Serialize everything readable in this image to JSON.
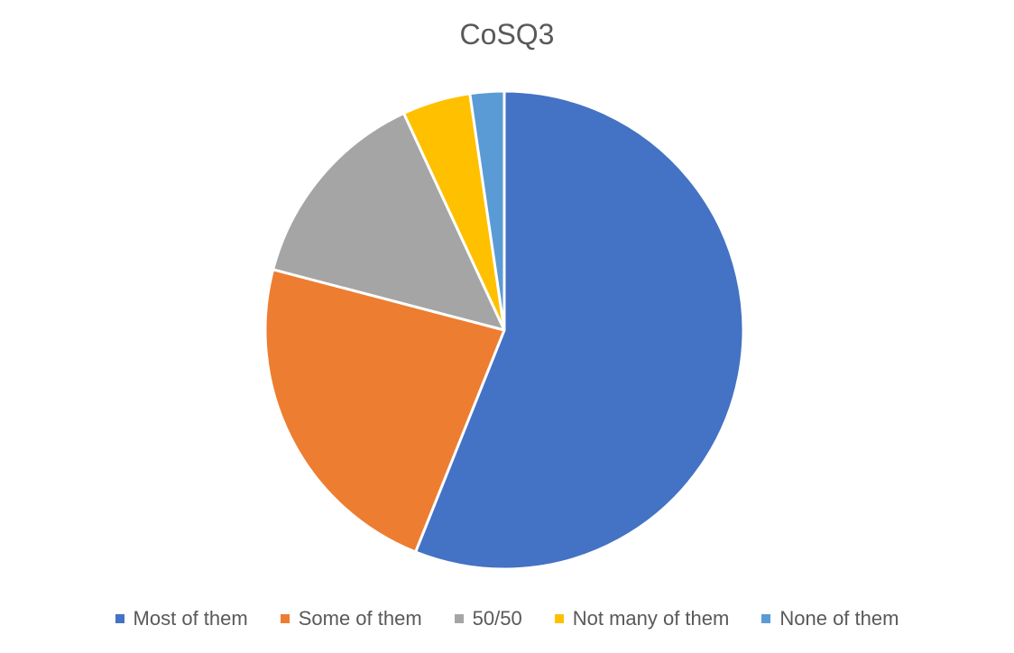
{
  "chart_data": {
    "type": "pie",
    "title": "CoSQ3",
    "categories": [
      "Most of them",
      "Some of them",
      "50/50",
      "Not many of them",
      "None of them"
    ],
    "values": [
      56,
      23,
      14,
      4.6,
      2.3
    ],
    "colors": [
      "#4472C4",
      "#ED7D31",
      "#A5A5A5",
      "#FFC000",
      "#5B9BD5"
    ],
    "legend_position": "bottom"
  }
}
